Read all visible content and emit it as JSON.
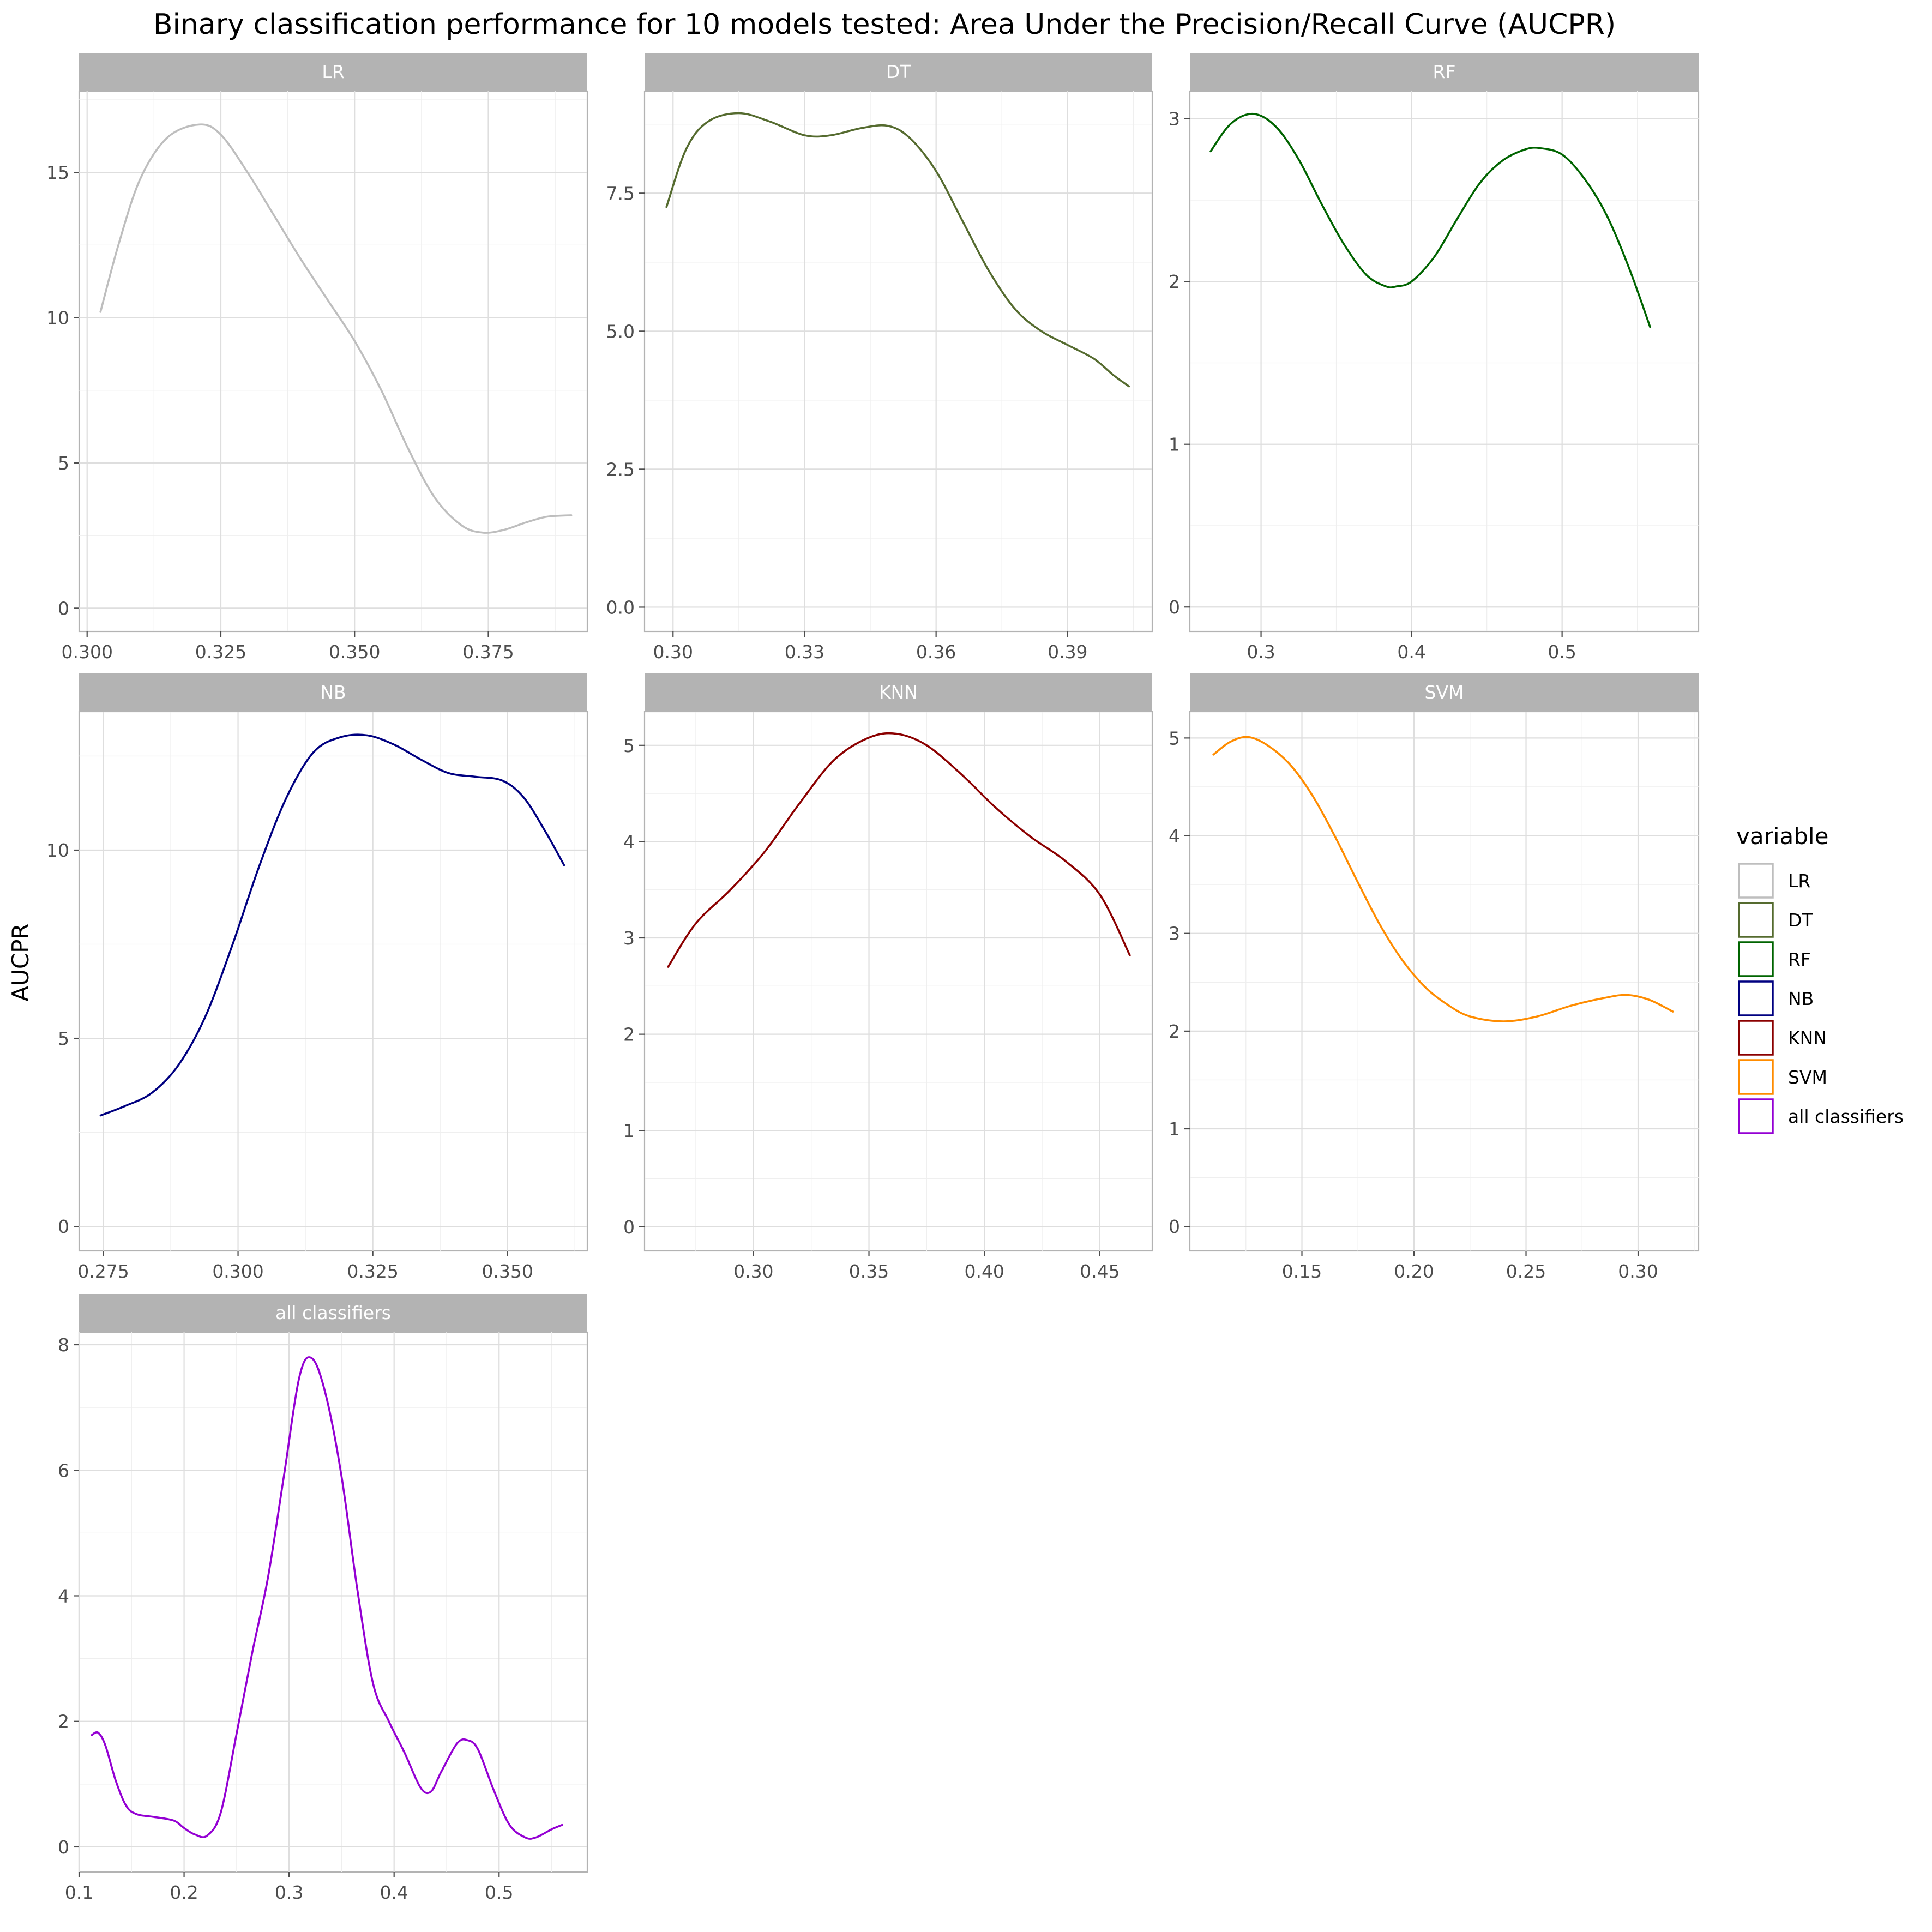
{
  "chart_data": {
    "type": "line",
    "title": "Binary classification performance for 10 models tested: Area Under the Precision/Recall Curve (AUCPR)",
    "ylabel": "AUCPR",
    "xlabel": "",
    "grid": true,
    "legend": {
      "title": "variable",
      "position": "right",
      "entries": [
        "LR",
        "DT",
        "RF",
        "NB",
        "KNN",
        "SVM",
        "all classifiers"
      ]
    },
    "colors": {
      "LR": "#bebebe",
      "DT": "#556b2f",
      "RF": "#006400",
      "NB": "#000080",
      "KNN": "#8b0000",
      "SVM": "#ff8c00",
      "all classifiers": "#9400d3"
    },
    "panels": [
      {
        "name": "LR",
        "xlim": [
          0.2985,
          0.3935
        ],
        "ylim": [
          -0.8,
          17.8
        ],
        "xticks": [
          0.3,
          0.325,
          0.35,
          0.375
        ],
        "xtick_labels": [
          "0.300",
          "0.325",
          "0.350",
          "0.375"
        ],
        "yticks": [
          0,
          5,
          10,
          15
        ],
        "ytick_labels": [
          "0",
          "5",
          "10",
          "15"
        ],
        "x": [
          0.3025,
          0.306,
          0.31,
          0.315,
          0.321,
          0.325,
          0.33,
          0.335,
          0.34,
          0.345,
          0.35,
          0.355,
          0.36,
          0.365,
          0.37,
          0.374,
          0.378,
          0.382,
          0.386,
          0.3905
        ],
        "y": [
          10.2,
          12.6,
          14.8,
          16.2,
          16.65,
          16.3,
          15.0,
          13.5,
          12.0,
          10.6,
          9.2,
          7.5,
          5.5,
          3.8,
          2.85,
          2.6,
          2.7,
          2.95,
          3.15,
          3.2
        ]
      },
      {
        "name": "DT",
        "xlim": [
          0.2935,
          0.4093
        ],
        "ylim": [
          -0.44,
          9.35
        ],
        "xticks": [
          0.3,
          0.33,
          0.36,
          0.39
        ],
        "xtick_labels": [
          "0.30",
          "0.33",
          "0.36",
          "0.39"
        ],
        "yticks": [
          0,
          2.5,
          5,
          7.5
        ],
        "ytick_labels": [
          "0.0",
          "2.5",
          "5.0",
          "7.5"
        ],
        "x": [
          0.2985,
          0.303,
          0.308,
          0.315,
          0.322,
          0.33,
          0.336,
          0.343,
          0.349,
          0.354,
          0.36,
          0.366,
          0.372,
          0.378,
          0.384,
          0.39,
          0.396,
          0.4005,
          0.404
        ],
        "y": [
          7.25,
          8.3,
          8.8,
          8.95,
          8.8,
          8.55,
          8.55,
          8.68,
          8.72,
          8.5,
          7.9,
          7.0,
          6.1,
          5.4,
          5.0,
          4.75,
          4.5,
          4.2,
          4.0
        ]
      },
      {
        "name": "RF",
        "xlim": [
          0.2527,
          0.5907
        ],
        "ylim": [
          -0.15,
          3.17
        ],
        "xticks": [
          0.3,
          0.4,
          0.5
        ],
        "xtick_labels": [
          "0.3",
          "0.4",
          "0.5"
        ],
        "yticks": [
          0,
          1,
          2,
          3
        ],
        "ytick_labels": [
          "0",
          "1",
          "2",
          "3"
        ],
        "x": [
          0.2665,
          0.28,
          0.295,
          0.31,
          0.325,
          0.34,
          0.355,
          0.37,
          0.383,
          0.39,
          0.4,
          0.415,
          0.43,
          0.445,
          0.46,
          0.475,
          0.485,
          0.5,
          0.515,
          0.53,
          0.545,
          0.5585
        ],
        "y": [
          2.8,
          2.97,
          3.03,
          2.95,
          2.75,
          2.48,
          2.23,
          2.04,
          1.97,
          1.97,
          2.0,
          2.15,
          2.38,
          2.6,
          2.74,
          2.81,
          2.82,
          2.78,
          2.63,
          2.4,
          2.07,
          1.72
        ]
      },
      {
        "name": "NB",
        "xlim": [
          0.2705,
          0.3648
        ],
        "ylim": [
          -0.65,
          13.68
        ],
        "xticks": [
          0.275,
          0.3,
          0.325,
          0.35
        ],
        "xtick_labels": [
          "0.275",
          "0.300",
          "0.325",
          "0.350"
        ],
        "yticks": [
          0,
          5,
          10
        ],
        "ytick_labels": [
          "0",
          "5",
          "10"
        ],
        "x": [
          0.2745,
          0.279,
          0.284,
          0.289,
          0.294,
          0.299,
          0.304,
          0.309,
          0.314,
          0.319,
          0.324,
          0.329,
          0.334,
          0.339,
          0.344,
          0.349,
          0.353,
          0.357,
          0.3605
        ],
        "y": [
          2.95,
          3.2,
          3.55,
          4.3,
          5.6,
          7.5,
          9.6,
          11.4,
          12.6,
          13.0,
          13.05,
          12.8,
          12.4,
          12.05,
          11.95,
          11.85,
          11.4,
          10.5,
          9.6
        ]
      },
      {
        "name": "KNN",
        "xlim": [
          0.2528,
          0.4727
        ],
        "ylim": [
          -0.25,
          5.35
        ],
        "xticks": [
          0.3,
          0.35,
          0.4,
          0.45
        ],
        "xtick_labels": [
          "0.30",
          "0.35",
          "0.40",
          "0.45"
        ],
        "yticks": [
          0,
          1,
          2,
          3,
          4,
          5
        ],
        "ytick_labels": [
          "0",
          "1",
          "2",
          "3",
          "4",
          "5"
        ],
        "x": [
          0.263,
          0.275,
          0.29,
          0.305,
          0.32,
          0.335,
          0.35,
          0.362,
          0.375,
          0.39,
          0.405,
          0.42,
          0.435,
          0.45,
          0.463
        ],
        "y": [
          2.7,
          3.15,
          3.5,
          3.9,
          4.4,
          4.85,
          5.08,
          5.12,
          5.0,
          4.7,
          4.35,
          4.05,
          3.8,
          3.45,
          2.82
        ]
      },
      {
        "name": "SVM",
        "xlim": [
          0.1,
          0.327
        ],
        "ylim": [
          -0.25,
          5.27
        ],
        "xticks": [
          0.15,
          0.2,
          0.25,
          0.3
        ],
        "xtick_labels": [
          "0.15",
          "0.20",
          "0.25",
          "0.30"
        ],
        "yticks": [
          0,
          1,
          2,
          3,
          4,
          5
        ],
        "ytick_labels": [
          "0",
          "1",
          "2",
          "3",
          "4",
          "5"
        ],
        "x": [
          0.1105,
          0.118,
          0.126,
          0.135,
          0.145,
          0.155,
          0.165,
          0.175,
          0.185,
          0.195,
          0.205,
          0.215,
          0.225,
          0.24,
          0.255,
          0.27,
          0.285,
          0.295,
          0.305,
          0.3155
        ],
        "y": [
          4.83,
          4.96,
          5.01,
          4.92,
          4.72,
          4.4,
          3.98,
          3.52,
          3.08,
          2.72,
          2.45,
          2.27,
          2.15,
          2.1,
          2.15,
          2.26,
          2.34,
          2.37,
          2.32,
          2.2
        ]
      },
      {
        "name": "all classifiers",
        "xlim": [
          0.1,
          0.584
        ],
        "ylim": [
          -0.4,
          8.2
        ],
        "xticks": [
          0.1,
          0.2,
          0.3,
          0.4,
          0.5
        ],
        "xtick_labels": [
          "0.1",
          "0.2",
          "0.3",
          "0.4",
          "0.5"
        ],
        "yticks": [
          0,
          2,
          4,
          6,
          8
        ],
        "ytick_labels": [
          "0",
          "2",
          "4",
          "6",
          "8"
        ],
        "x": [
          0.112,
          0.118,
          0.125,
          0.135,
          0.145,
          0.155,
          0.17,
          0.19,
          0.2,
          0.21,
          0.222,
          0.235,
          0.25,
          0.265,
          0.28,
          0.295,
          0.31,
          0.322,
          0.335,
          0.35,
          0.365,
          0.38,
          0.395,
          0.41,
          0.425,
          0.435,
          0.445,
          0.46,
          0.47,
          0.48,
          0.495,
          0.51,
          0.525,
          0.535,
          0.55,
          0.56
        ],
        "y": [
          1.78,
          1.82,
          1.62,
          1.05,
          0.65,
          0.52,
          0.48,
          0.42,
          0.3,
          0.2,
          0.18,
          0.55,
          1.8,
          3.1,
          4.3,
          5.9,
          7.5,
          7.78,
          7.2,
          5.9,
          4.1,
          2.6,
          2.0,
          1.5,
          0.95,
          0.88,
          1.2,
          1.65,
          1.7,
          1.55,
          0.9,
          0.35,
          0.15,
          0.15,
          0.28,
          0.35
        ]
      }
    ]
  }
}
